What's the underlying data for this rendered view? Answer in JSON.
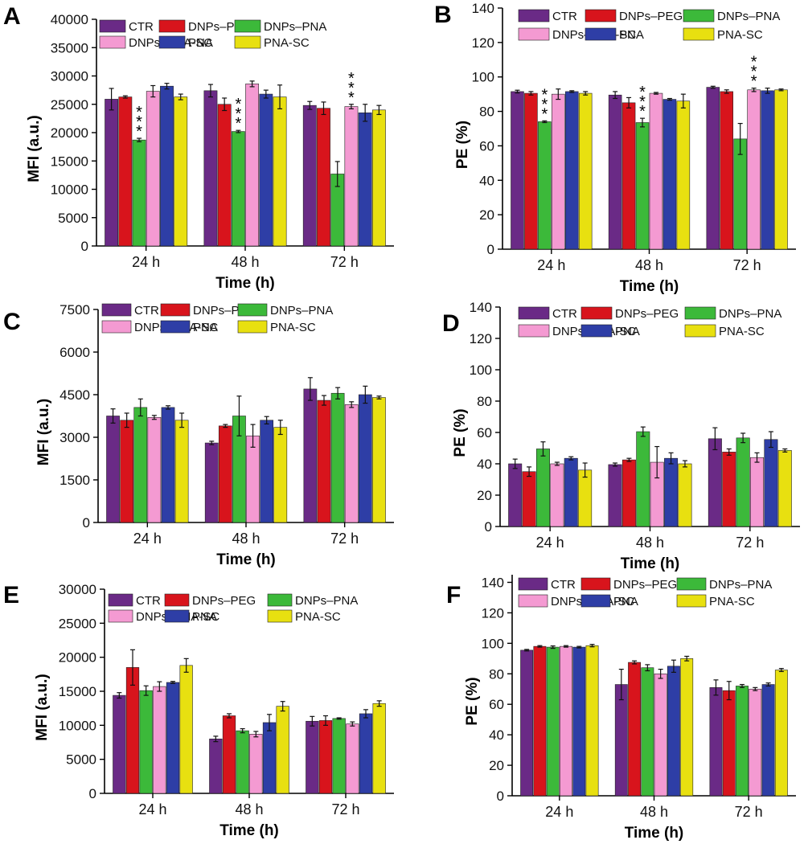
{
  "colors": {
    "CTR": "#6a2a86",
    "DNPs–PEG": "#d8141c",
    "DNPs–PNA": "#3cb93a",
    "DNPs–PNA-SC": "#f49ad2",
    "PNA": "#2e3ea6",
    "PNA-SC": "#e8e010"
  },
  "chart_data": [
    {
      "panel": "A",
      "type": "bar",
      "categories": [
        "24 h",
        "48 h",
        "72 h"
      ],
      "xlabel": "Time (h)",
      "ylabel": "MFI (a.u.)",
      "ylim": [
        0,
        40000
      ],
      "yticks": [
        0,
        5000,
        10000,
        15000,
        20000,
        25000,
        30000,
        35000,
        40000
      ],
      "legend": "top, 3 columns",
      "series": [
        {
          "name": "CTR",
          "values": [
            25900,
            27400,
            24800
          ],
          "errors": [
            1900,
            1100,
            700
          ]
        },
        {
          "name": "DNPs–PEG",
          "values": [
            26300,
            25000,
            24300
          ],
          "errors": [
            200,
            1100,
            1100
          ]
        },
        {
          "name": "DNPs–PNA",
          "values": [
            18700,
            20200,
            12700
          ],
          "errors": [
            300,
            200,
            2200
          ]
        },
        {
          "name": "DNPs–PNA-SC",
          "values": [
            27300,
            28600,
            24600
          ],
          "errors": [
            1000,
            500,
            400
          ]
        },
        {
          "name": "PNA",
          "values": [
            28200,
            26800,
            23500
          ],
          "errors": [
            500,
            700,
            1500
          ]
        },
        {
          "name": "PNA-SC",
          "values": [
            26300,
            26300,
            24000
          ],
          "errors": [
            500,
            2100,
            800
          ]
        }
      ],
      "annotations": [
        {
          "category": "24 h",
          "series": "DNPs–PNA",
          "text": "***"
        },
        {
          "category": "48 h",
          "series": "DNPs–PNA",
          "text": "***"
        },
        {
          "category": "72 h",
          "series": "DNPs–PNA-SC",
          "text": "***"
        }
      ]
    },
    {
      "panel": "B",
      "type": "bar",
      "categories": [
        "24 h",
        "48 h",
        "72 h"
      ],
      "xlabel": "Time (h)",
      "ylabel": "PE (%)",
      "ylim": [
        0,
        140
      ],
      "yticks": [
        0,
        20,
        40,
        60,
        80,
        100,
        120,
        140
      ],
      "legend": "top, 3 columns",
      "series": [
        {
          "name": "CTR",
          "values": [
            91.5,
            89.5,
            94
          ],
          "errors": [
            0.8,
            2,
            0.6
          ]
        },
        {
          "name": "DNPs–PEG",
          "values": [
            90.5,
            85,
            91.5
          ],
          "errors": [
            1,
            3,
            1
          ]
        },
        {
          "name": "DNPs–PNA",
          "values": [
            74,
            73.5,
            64
          ],
          "errors": [
            0.5,
            2.5,
            9
          ]
        },
        {
          "name": "DNPs–PNA-SC",
          "values": [
            90,
            90.5,
            92.5
          ],
          "errors": [
            3,
            0.5,
            1
          ]
        },
        {
          "name": "PNA",
          "values": [
            91.5,
            87,
            92
          ],
          "errors": [
            0.5,
            0.5,
            1.5
          ]
        },
        {
          "name": "PNA-SC",
          "values": [
            90.5,
            86,
            92.5
          ],
          "errors": [
            1,
            4,
            0.5
          ]
        }
      ],
      "annotations": [
        {
          "category": "24 h",
          "series": "DNPs–PNA",
          "text": "***"
        },
        {
          "category": "48 h",
          "series": "DNPs–PNA",
          "text": "***"
        },
        {
          "category": "72 h",
          "series": "DNPs–PNA-SC",
          "text": "***"
        }
      ]
    },
    {
      "panel": "C",
      "type": "bar",
      "categories": [
        "24 h",
        "48 h",
        "72 h"
      ],
      "xlabel": "Time (h)",
      "ylabel": "MFI (a.u.)",
      "ylim": [
        0,
        7500
      ],
      "yticks": [
        0,
        1500,
        3000,
        4500,
        6000,
        7500
      ],
      "legend": "top, 3 columns",
      "series": [
        {
          "name": "CTR",
          "values": [
            3750,
            2800,
            4700
          ],
          "errors": [
            250,
            60,
            400
          ]
        },
        {
          "name": "DNPs–PEG",
          "values": [
            3600,
            3400,
            4300
          ],
          "errors": [
            250,
            50,
            170
          ]
        },
        {
          "name": "DNPs–PNA",
          "values": [
            4050,
            3750,
            4550
          ],
          "errors": [
            300,
            700,
            200
          ]
        },
        {
          "name": "DNPs–PNA-SC",
          "values": [
            3700,
            3050,
            4150
          ],
          "errors": [
            70,
            400,
            100
          ]
        },
        {
          "name": "PNA",
          "values": [
            4050,
            3600,
            4500
          ],
          "errors": [
            60,
            130,
            300
          ]
        },
        {
          "name": "PNA-SC",
          "values": [
            3600,
            3350,
            4400
          ],
          "errors": [
            250,
            250,
            50
          ]
        }
      ]
    },
    {
      "panel": "D",
      "type": "bar",
      "categories": [
        "24 h",
        "48 h",
        "72 h"
      ],
      "xlabel": "Time (h)",
      "ylabel": "PE (%)",
      "ylim": [
        0,
        140
      ],
      "yticks": [
        0,
        20,
        40,
        60,
        80,
        100,
        120,
        140
      ],
      "legend": "top, 3 columns",
      "series": [
        {
          "name": "CTR",
          "values": [
            40,
            39.5,
            56
          ],
          "errors": [
            3,
            1,
            7
          ]
        },
        {
          "name": "DNPs–PEG",
          "values": [
            35,
            42.5,
            47.5
          ],
          "errors": [
            3,
            1,
            2
          ]
        },
        {
          "name": "DNPs–PNA",
          "values": [
            49.5,
            60.5,
            56.5
          ],
          "errors": [
            4.5,
            3,
            3
          ]
        },
        {
          "name": "DNPs–PNA-SC",
          "values": [
            40,
            41,
            44
          ],
          "errors": [
            1,
            10,
            3
          ]
        },
        {
          "name": "PNA",
          "values": [
            43.5,
            43.5,
            55.5
          ],
          "errors": [
            1,
            3.5,
            5
          ]
        },
        {
          "name": "PNA-SC",
          "values": [
            36,
            40,
            48.5
          ],
          "errors": [
            4.5,
            2,
            1
          ]
        }
      ]
    },
    {
      "panel": "E",
      "type": "bar",
      "categories": [
        "24 h",
        "48 h",
        "72 h"
      ],
      "xlabel": "Time (h)",
      "ylabel": "MFI (a.u.)",
      "ylim": [
        0,
        30000
      ],
      "yticks": [
        0,
        5000,
        10000,
        15000,
        20000,
        25000,
        30000
      ],
      "legend": "top, 3 columns",
      "series": [
        {
          "name": "CTR",
          "values": [
            14400,
            8000,
            10600
          ],
          "errors": [
            400,
            400,
            700
          ]
        },
        {
          "name": "DNPs–PEG",
          "values": [
            18500,
            11400,
            10700
          ],
          "errors": [
            2600,
            300,
            700
          ]
        },
        {
          "name": "DNPs–PNA",
          "values": [
            15100,
            9200,
            11000
          ],
          "errors": [
            700,
            300,
            100
          ]
        },
        {
          "name": "DNPs–PNA-SC",
          "values": [
            15700,
            8700,
            10200
          ],
          "errors": [
            700,
            400,
            300
          ]
        },
        {
          "name": "PNA",
          "values": [
            16300,
            10400,
            11700
          ],
          "errors": [
            150,
            1200,
            600
          ]
        },
        {
          "name": "PNA-SC",
          "values": [
            18800,
            12800,
            13200
          ],
          "errors": [
            1000,
            700,
            400
          ]
        }
      ]
    },
    {
      "panel": "F",
      "type": "bar",
      "categories": [
        "24 h",
        "48 h",
        "72 h"
      ],
      "xlabel": "Time (h)",
      "ylabel": "PE (%)",
      "ylim": [
        0,
        145
      ],
      "yticks": [
        0,
        20,
        40,
        60,
        80,
        100,
        120,
        140
      ],
      "legend": "top, 3 columns",
      "series": [
        {
          "name": "CTR",
          "values": [
            95.5,
            73,
            71
          ],
          "errors": [
            0.5,
            10,
            5
          ]
        },
        {
          "name": "DNPs–PEG",
          "values": [
            98,
            87.5,
            69
          ],
          "errors": [
            0.5,
            1,
            6
          ]
        },
        {
          "name": "DNPs–PNA",
          "values": [
            97.5,
            84,
            72
          ],
          "errors": [
            0.8,
            2,
            1
          ]
        },
        {
          "name": "DNPs–PNA-SC",
          "values": [
            98,
            80,
            70
          ],
          "errors": [
            0.5,
            3,
            1
          ]
        },
        {
          "name": "PNA",
          "values": [
            97.5,
            85,
            73
          ],
          "errors": [
            0.5,
            4,
            1
          ]
        },
        {
          "name": "PNA-SC",
          "values": [
            98.5,
            90,
            82.5
          ],
          "errors": [
            0.8,
            1.5,
            1
          ]
        }
      ]
    }
  ]
}
